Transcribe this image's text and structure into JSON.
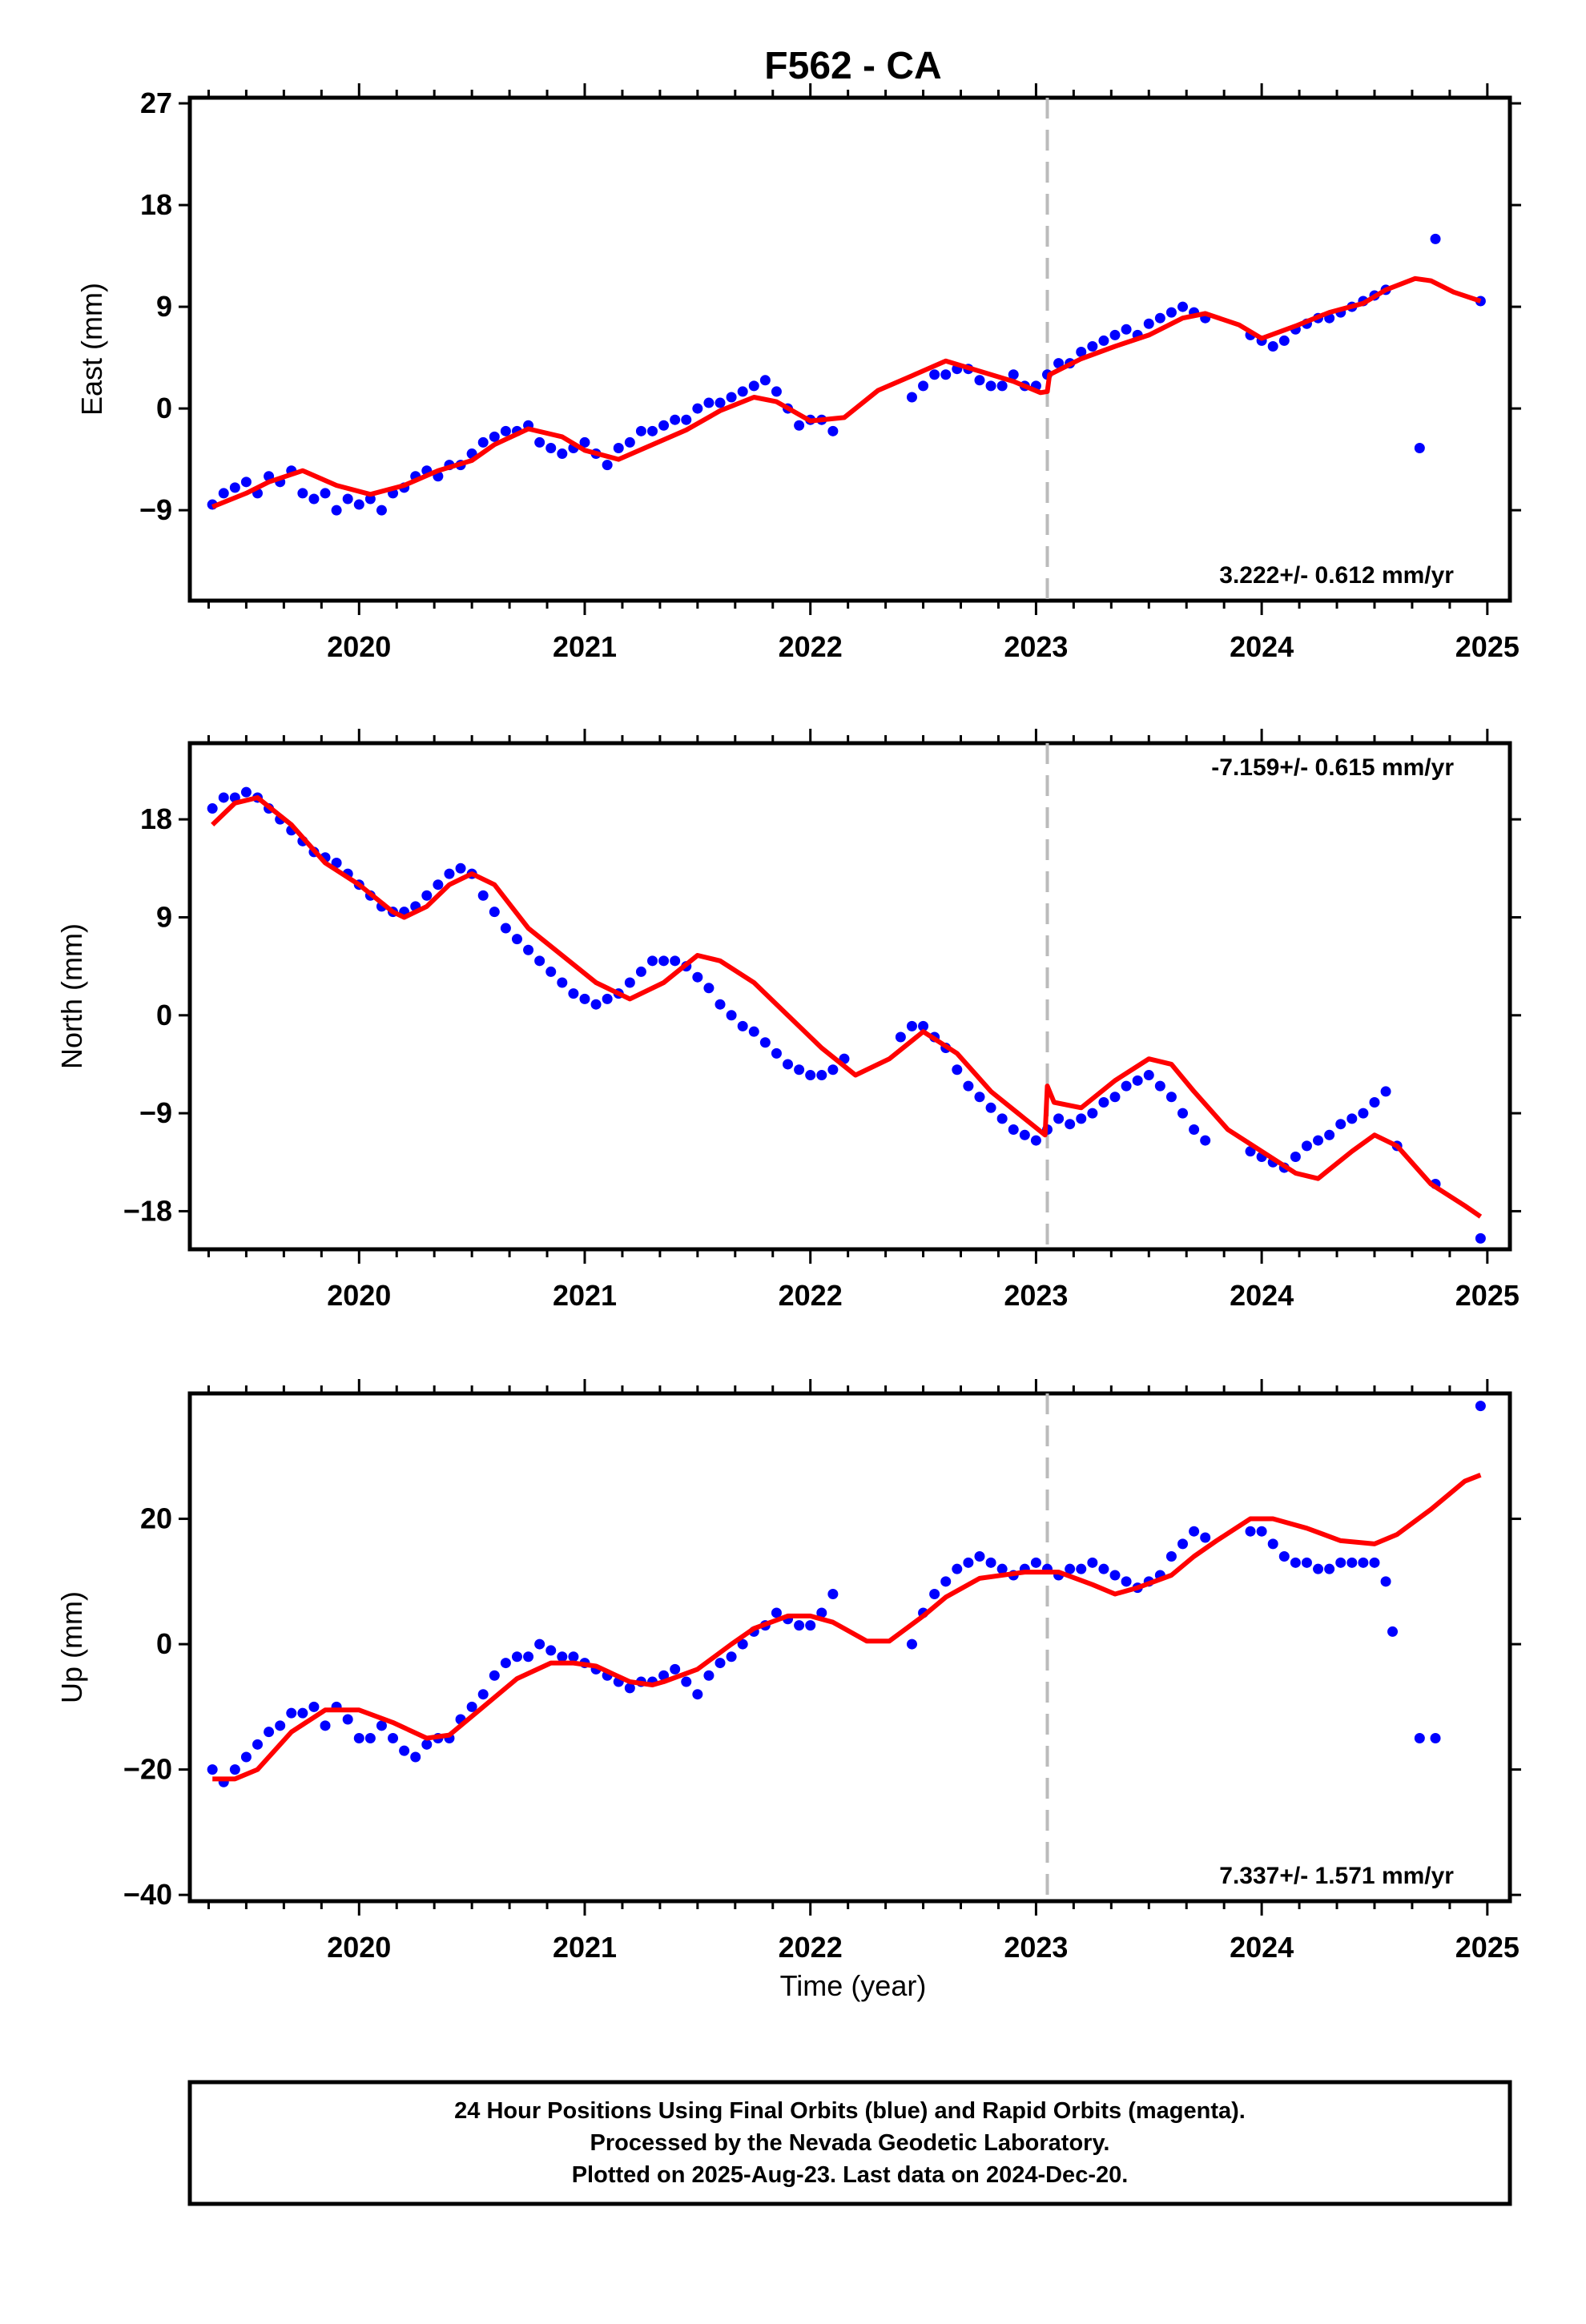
{
  "chart_data": [
    {
      "type": "scatter",
      "title": "F562 - CA",
      "ylabel": "East (mm)",
      "xlabel": "",
      "xlim": [
        2019.25,
        2025.1
      ],
      "ylim": [
        -17,
        27.5
      ],
      "xticks": [
        2020,
        2021,
        2022,
        2023,
        2024,
        2025
      ],
      "yticks": [
        -9,
        0,
        9,
        18,
        27
      ],
      "grid": false,
      "rate_text": "3.222+/- 0.612 mm/yr",
      "event_line_x": 2023.05,
      "series": [
        {
          "role": "observations",
          "color": "#0000ff",
          "x": [
            2019.35,
            2019.4,
            2019.45,
            2019.5,
            2019.55,
            2019.6,
            2019.65,
            2019.7,
            2019.75,
            2019.8,
            2019.85,
            2019.9,
            2019.95,
            2020.0,
            2020.05,
            2020.1,
            2020.15,
            2020.2,
            2020.25,
            2020.3,
            2020.35,
            2020.4,
            2020.45,
            2020.5,
            2020.55,
            2020.6,
            2020.65,
            2020.7,
            2020.75,
            2020.8,
            2020.85,
            2020.9,
            2020.95,
            2021.0,
            2021.05,
            2021.1,
            2021.15,
            2021.2,
            2021.25,
            2021.3,
            2021.35,
            2021.4,
            2021.45,
            2021.5,
            2021.55,
            2021.6,
            2021.65,
            2021.7,
            2021.75,
            2021.8,
            2021.85,
            2021.9,
            2021.95,
            2022.0,
            2022.05,
            2022.1,
            2022.45,
            2022.5,
            2022.55,
            2022.6,
            2022.65,
            2022.7,
            2022.75,
            2022.8,
            2022.85,
            2022.9,
            2022.95,
            2023.0,
            2023.05,
            2023.1,
            2023.15,
            2023.2,
            2023.25,
            2023.3,
            2023.35,
            2023.4,
            2023.45,
            2023.5,
            2023.55,
            2023.6,
            2023.65,
            2023.7,
            2023.75,
            2023.95,
            2024.0,
            2024.05,
            2024.1,
            2024.15,
            2024.2,
            2024.25,
            2024.3,
            2024.35,
            2024.4,
            2024.45,
            2024.5,
            2024.55,
            2024.7,
            2024.77,
            2024.97
          ],
          "y": [
            -8.5,
            -7.5,
            -7,
            -6.5,
            -7.5,
            -6,
            -6.5,
            -5.5,
            -7.5,
            -8,
            -7.5,
            -9,
            -8,
            -8.5,
            -8,
            -9,
            -7.5,
            -7,
            -6,
            -5.5,
            -6,
            -5,
            -5,
            -4,
            -3,
            -2.5,
            -2,
            -2,
            -1.5,
            -3,
            -3.5,
            -4,
            -3.5,
            -3,
            -4,
            -5,
            -3.5,
            -3,
            -2,
            -2,
            -1.5,
            -1,
            -1,
            0,
            0.5,
            0.5,
            1,
            1.5,
            2,
            2.5,
            1.5,
            0,
            -1.5,
            -1,
            -1,
            -2,
            1,
            2,
            3,
            3,
            3.5,
            3.5,
            2.5,
            2,
            2,
            3,
            2,
            2,
            3,
            4,
            4,
            5,
            5.5,
            6,
            6.5,
            7,
            6.5,
            7.5,
            8,
            8.5,
            9,
            8.5,
            8,
            6.5,
            6,
            5.5,
            6,
            7,
            7.5,
            8,
            8,
            8.5,
            9,
            9.5,
            10,
            10.5,
            -3.5,
            15,
            9.5
          ]
        },
        {
          "role": "model-fit",
          "color": "#ff0000",
          "x": [
            2019.35,
            2019.5,
            2019.6,
            2019.75,
            2019.9,
            2020.05,
            2020.2,
            2020.35,
            2020.5,
            2020.6,
            2020.75,
            2020.9,
            2021.0,
            2021.15,
            2021.3,
            2021.45,
            2021.6,
            2021.75,
            2021.85,
            2022.0,
            2022.15,
            2022.3,
            2022.45,
            2022.6,
            2022.75,
            2022.9,
            2023.02,
            2023.05,
            2023.06,
            2023.2,
            2023.35,
            2023.5,
            2023.65,
            2023.75,
            2023.9,
            2024.0,
            2024.15,
            2024.3,
            2024.45,
            2024.55,
            2024.68,
            2024.75,
            2024.85,
            2024.97
          ],
          "y": [
            -8.7,
            -7.5,
            -6.5,
            -5.5,
            -6.8,
            -7.6,
            -6.8,
            -5.5,
            -4.6,
            -3.2,
            -1.8,
            -2.5,
            -3.7,
            -4.5,
            -3.2,
            -1.9,
            -0.2,
            1.0,
            0.6,
            -1.1,
            -0.8,
            1.6,
            2.9,
            4.2,
            3.3,
            2.4,
            1.4,
            1.5,
            3.0,
            4.4,
            5.5,
            6.5,
            8.0,
            8.4,
            7.4,
            6.2,
            7.3,
            8.5,
            9.3,
            10.5,
            11.5,
            11.3,
            10.3,
            9.5
          ]
        }
      ]
    },
    {
      "type": "scatter",
      "ylabel": "North (mm)",
      "xlabel": "",
      "xlim": [
        2019.25,
        2025.1
      ],
      "ylim": [
        -21.5,
        25
      ],
      "xticks": [
        2020,
        2021,
        2022,
        2023,
        2024,
        2025
      ],
      "yticks": [
        -18,
        -9,
        0,
        9,
        18
      ],
      "grid": false,
      "rate_text": "-7.159+/- 0.615 mm/yr",
      "event_line_x": 2023.05,
      "series": [
        {
          "role": "observations",
          "color": "#0000ff",
          "x": [
            2019.35,
            2019.4,
            2019.45,
            2019.5,
            2019.55,
            2019.6,
            2019.65,
            2019.7,
            2019.75,
            2019.8,
            2019.85,
            2019.9,
            2019.95,
            2020.0,
            2020.05,
            2020.1,
            2020.15,
            2020.2,
            2020.25,
            2020.3,
            2020.35,
            2020.4,
            2020.45,
            2020.5,
            2020.55,
            2020.6,
            2020.65,
            2020.7,
            2020.75,
            2020.8,
            2020.85,
            2020.9,
            2020.95,
            2021.0,
            2021.05,
            2021.1,
            2021.15,
            2021.2,
            2021.25,
            2021.3,
            2021.35,
            2021.4,
            2021.45,
            2021.5,
            2021.55,
            2021.6,
            2021.65,
            2021.7,
            2021.75,
            2021.8,
            2021.85,
            2021.9,
            2021.95,
            2022.0,
            2022.05,
            2022.1,
            2022.15,
            2022.4,
            2022.45,
            2022.5,
            2022.55,
            2022.6,
            2022.65,
            2022.7,
            2022.75,
            2022.8,
            2022.85,
            2022.9,
            2022.95,
            2023.0,
            2023.05,
            2023.1,
            2023.15,
            2023.2,
            2023.25,
            2023.3,
            2023.35,
            2023.4,
            2023.45,
            2023.5,
            2023.55,
            2023.6,
            2023.65,
            2023.7,
            2023.75,
            2023.95,
            2024.0,
            2024.05,
            2024.1,
            2024.15,
            2024.2,
            2024.25,
            2024.3,
            2024.35,
            2024.4,
            2024.45,
            2024.5,
            2024.55,
            2024.6,
            2024.77,
            2024.97
          ],
          "y": [
            19,
            20,
            20,
            20.5,
            20,
            19,
            18,
            17,
            16,
            15,
            14.5,
            14,
            13,
            12,
            11,
            10,
            9.5,
            9.5,
            10,
            11,
            12,
            13,
            13.5,
            13,
            11,
            9.5,
            8,
            7,
            6,
            5,
            4,
            3,
            2,
            1.5,
            1,
            1.5,
            2,
            3,
            4,
            5,
            5,
            5,
            4.5,
            3.5,
            2.5,
            1,
            0,
            -1,
            -1.5,
            -2.5,
            -3.5,
            -4.5,
            -5,
            -5.5,
            -5.5,
            -5,
            -4,
            -2,
            -1,
            -1,
            -2,
            -3,
            -5,
            -6.5,
            -7.5,
            -8.5,
            -9.5,
            -10.5,
            -11,
            -11.5,
            -10.5,
            -9.5,
            -10,
            -9.5,
            -9,
            -8,
            -7.5,
            -6.5,
            -6,
            -5.5,
            -6.5,
            -7.5,
            -9,
            -10.5,
            -11.5,
            -12.5,
            -13,
            -13.5,
            -14,
            -13,
            -12,
            -11.5,
            -11,
            -10,
            -9.5,
            -9,
            -8,
            -7,
            -12,
            -15.5,
            -20.5
          ]
        },
        {
          "role": "model-fit",
          "color": "#ff0000",
          "x": [
            2019.35,
            2019.45,
            2019.55,
            2019.7,
            2019.85,
            2020.0,
            2020.15,
            2020.2,
            2020.3,
            2020.4,
            2020.5,
            2020.6,
            2020.75,
            2020.9,
            2021.05,
            2021.2,
            2021.35,
            2021.5,
            2021.6,
            2021.75,
            2021.9,
            2022.05,
            2022.2,
            2022.35,
            2022.5,
            2022.65,
            2022.8,
            2022.95,
            2023.04,
            2023.05,
            2023.08,
            2023.2,
            2023.35,
            2023.5,
            2023.6,
            2023.7,
            2023.85,
            2024.0,
            2024.15,
            2024.25,
            2024.4,
            2024.5,
            2024.6,
            2024.75,
            2024.9,
            2024.97
          ],
          "y": [
            17.5,
            19.5,
            20,
            17.5,
            14,
            12,
            9.5,
            9,
            10,
            12,
            13,
            12,
            8,
            5.5,
            3,
            1.5,
            3,
            5.5,
            5,
            3,
            0,
            -3,
            -5.5,
            -4,
            -1.5,
            -3.5,
            -7,
            -9.5,
            -11,
            -6.5,
            -8,
            -8.5,
            -6,
            -4,
            -4.5,
            -7,
            -10.5,
            -12.5,
            -14.5,
            -15,
            -12.5,
            -11,
            -12,
            -15.5,
            -17.5,
            -18.5
          ]
        }
      ]
    },
    {
      "type": "scatter",
      "ylabel": "Up (mm)",
      "xlabel": "Time (year)",
      "xlim": [
        2019.25,
        2025.1
      ],
      "ylim": [
        -41,
        40
      ],
      "xticks": [
        2020,
        2021,
        2022,
        2023,
        2024,
        2025
      ],
      "yticks": [
        -40,
        -20,
        0,
        20
      ],
      "grid": false,
      "rate_text": "7.337+/- 1.571 mm/yr",
      "event_line_x": 2023.05,
      "series": [
        {
          "role": "observations",
          "color": "#0000ff",
          "x": [
            2019.35,
            2019.4,
            2019.45,
            2019.5,
            2019.55,
            2019.6,
            2019.65,
            2019.7,
            2019.75,
            2019.8,
            2019.85,
            2019.9,
            2019.95,
            2020.0,
            2020.05,
            2020.1,
            2020.15,
            2020.2,
            2020.25,
            2020.3,
            2020.35,
            2020.4,
            2020.45,
            2020.5,
            2020.55,
            2020.6,
            2020.65,
            2020.7,
            2020.75,
            2020.8,
            2020.85,
            2020.9,
            2020.95,
            2021.0,
            2021.05,
            2021.1,
            2021.15,
            2021.2,
            2021.25,
            2021.3,
            2021.35,
            2021.4,
            2021.45,
            2021.5,
            2021.55,
            2021.6,
            2021.65,
            2021.7,
            2021.75,
            2021.8,
            2021.85,
            2021.9,
            2021.95,
            2022.0,
            2022.05,
            2022.1,
            2022.45,
            2022.5,
            2022.55,
            2022.6,
            2022.65,
            2022.7,
            2022.75,
            2022.8,
            2022.85,
            2022.9,
            2022.95,
            2023.0,
            2023.05,
            2023.1,
            2023.15,
            2023.2,
            2023.25,
            2023.3,
            2023.35,
            2023.4,
            2023.45,
            2023.5,
            2023.55,
            2023.6,
            2023.65,
            2023.7,
            2023.75,
            2023.95,
            2024.0,
            2024.05,
            2024.1,
            2024.15,
            2024.2,
            2024.25,
            2024.3,
            2024.35,
            2024.4,
            2024.45,
            2024.5,
            2024.55,
            2024.58,
            2024.7,
            2024.77,
            2024.97
          ],
          "y": [
            -20,
            -22,
            -20,
            -18,
            -16,
            -14,
            -13,
            -11,
            -11,
            -10,
            -13,
            -10,
            -12,
            -15,
            -15,
            -13,
            -15,
            -17,
            -18,
            -16,
            -15,
            -15,
            -12,
            -10,
            -8,
            -5,
            -3,
            -2,
            -2,
            0,
            -1,
            -2,
            -2,
            -3,
            -4,
            -5,
            -6,
            -7,
            -6,
            -6,
            -5,
            -4,
            -6,
            -8,
            -5,
            -3,
            -2,
            0,
            2,
            3,
            5,
            4,
            3,
            3,
            5,
            8,
            0,
            5,
            8,
            10,
            12,
            13,
            14,
            13,
            12,
            11,
            12,
            13,
            12,
            11,
            12,
            12,
            13,
            12,
            11,
            10,
            9,
            10,
            11,
            14,
            16,
            18,
            17,
            18,
            18,
            16,
            14,
            13,
            13,
            12,
            12,
            13,
            13,
            13,
            13,
            10,
            2,
            -15,
            -15,
            38
          ]
        },
        {
          "role": "model-fit",
          "color": "#ff0000",
          "x": [
            2019.35,
            2019.45,
            2019.55,
            2019.7,
            2019.85,
            2020.0,
            2020.15,
            2020.3,
            2020.4,
            2020.55,
            2020.7,
            2020.85,
            2020.95,
            2021.05,
            2021.2,
            2021.3,
            2021.35,
            2021.5,
            2021.65,
            2021.75,
            2021.9,
            2022.0,
            2022.1,
            2022.25,
            2022.35,
            2022.5,
            2022.6,
            2022.75,
            2022.95,
            2023.1,
            2023.25,
            2023.35,
            2023.45,
            2023.6,
            2023.7,
            2023.8,
            2023.95,
            2024.05,
            2024.2,
            2024.35,
            2024.5,
            2024.6,
            2024.75,
            2024.9,
            2024.97
          ],
          "y": [
            -21.5,
            -21.5,
            -20,
            -14,
            -10.5,
            -10.5,
            -12.5,
            -15,
            -14.5,
            -10,
            -5.5,
            -3,
            -3,
            -3.5,
            -6,
            -6.5,
            -6,
            -4,
            0,
            2.5,
            4.5,
            4.5,
            3.5,
            0.5,
            0.5,
            4.5,
            7.5,
            10.5,
            11.5,
            11.5,
            9.5,
            8,
            9,
            11,
            14,
            16.5,
            20,
            20,
            18.5,
            16.5,
            16,
            17.5,
            21.5,
            26,
            27
          ]
        }
      ]
    }
  ],
  "footer": {
    "line1": "24 Hour Positions Using Final Orbits (blue) and Rapid Orbits (magenta).",
    "line2": "Processed by the Nevada Geodetic Laboratory.",
    "line3": "Plotted on 2025-Aug-23. Last data on 2024-Dec-20."
  }
}
